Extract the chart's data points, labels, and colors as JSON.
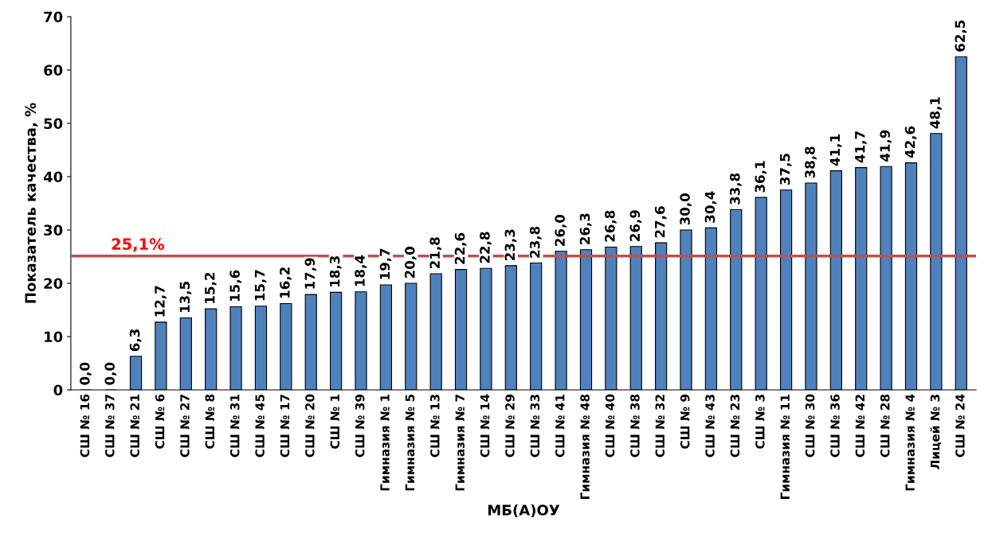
{
  "chart_data": {
    "type": "bar",
    "xlabel": "МБ(А)ОУ",
    "ylabel": "Показатель качества, %",
    "categories": [
      "СШ № 16",
      "СШ № 37",
      "СШ № 21",
      "СШ № 6",
      "СШ № 27",
      "СШ № 8",
      "СШ № 31",
      "СШ № 45",
      "СШ № 17",
      "СШ № 20",
      "СШ № 1",
      "СШ № 39",
      "Гимназия № 1",
      "Гимназия № 5",
      "СШ № 13",
      "Гимназия № 7",
      "СШ № 14",
      "СШ № 29",
      "СШ № 33",
      "СШ № 41",
      "Гимназия № 48",
      "СШ № 40",
      "СШ № 38",
      "СШ № 32",
      "СШ № 9",
      "СШ № 43",
      "СШ № 23",
      "СШ № 3",
      "Гимназия № 11",
      "СШ № 30",
      "СШ № 36",
      "СШ № 42",
      "СШ № 28",
      "Гимназия № 4",
      "Лицей № 3",
      "СШ № 24"
    ],
    "values": [
      0.0,
      0.0,
      6.3,
      12.7,
      13.5,
      15.2,
      15.6,
      15.7,
      16.2,
      17.9,
      18.3,
      18.4,
      19.7,
      20.0,
      21.8,
      22.6,
      22.8,
      23.3,
      23.8,
      26.0,
      26.3,
      26.8,
      26.9,
      27.6,
      30.0,
      30.4,
      33.8,
      36.1,
      37.5,
      38.8,
      41.1,
      41.7,
      41.9,
      42.6,
      48.1,
      62.5
    ],
    "value_labels": [
      "0,0",
      "0,0",
      "6,3",
      "12,7",
      "13,5",
      "15,2",
      "15,6",
      "15,7",
      "16,2",
      "17,9",
      "18,3",
      "18,4",
      "19,7",
      "20,0",
      "21,8",
      "22,6",
      "22,8",
      "23,3",
      "23,8",
      "26,0",
      "26,3",
      "26,8",
      "26,9",
      "27,6",
      "30,0",
      "30,4",
      "33,8",
      "36,1",
      "37,5",
      "38,8",
      "41,1",
      "41,7",
      "41,9",
      "42,6",
      "48,1",
      "62,5"
    ],
    "color": "#4f81bd",
    "ylim": [
      0,
      70
    ],
    "yticks": [
      0,
      10,
      20,
      30,
      40,
      50,
      60,
      70
    ],
    "ref_lines": [
      {
        "axis": "y",
        "value": 25.1,
        "label": "25,1%",
        "color": "#c0504d"
      }
    ],
    "grid": false,
    "legend": false
  }
}
